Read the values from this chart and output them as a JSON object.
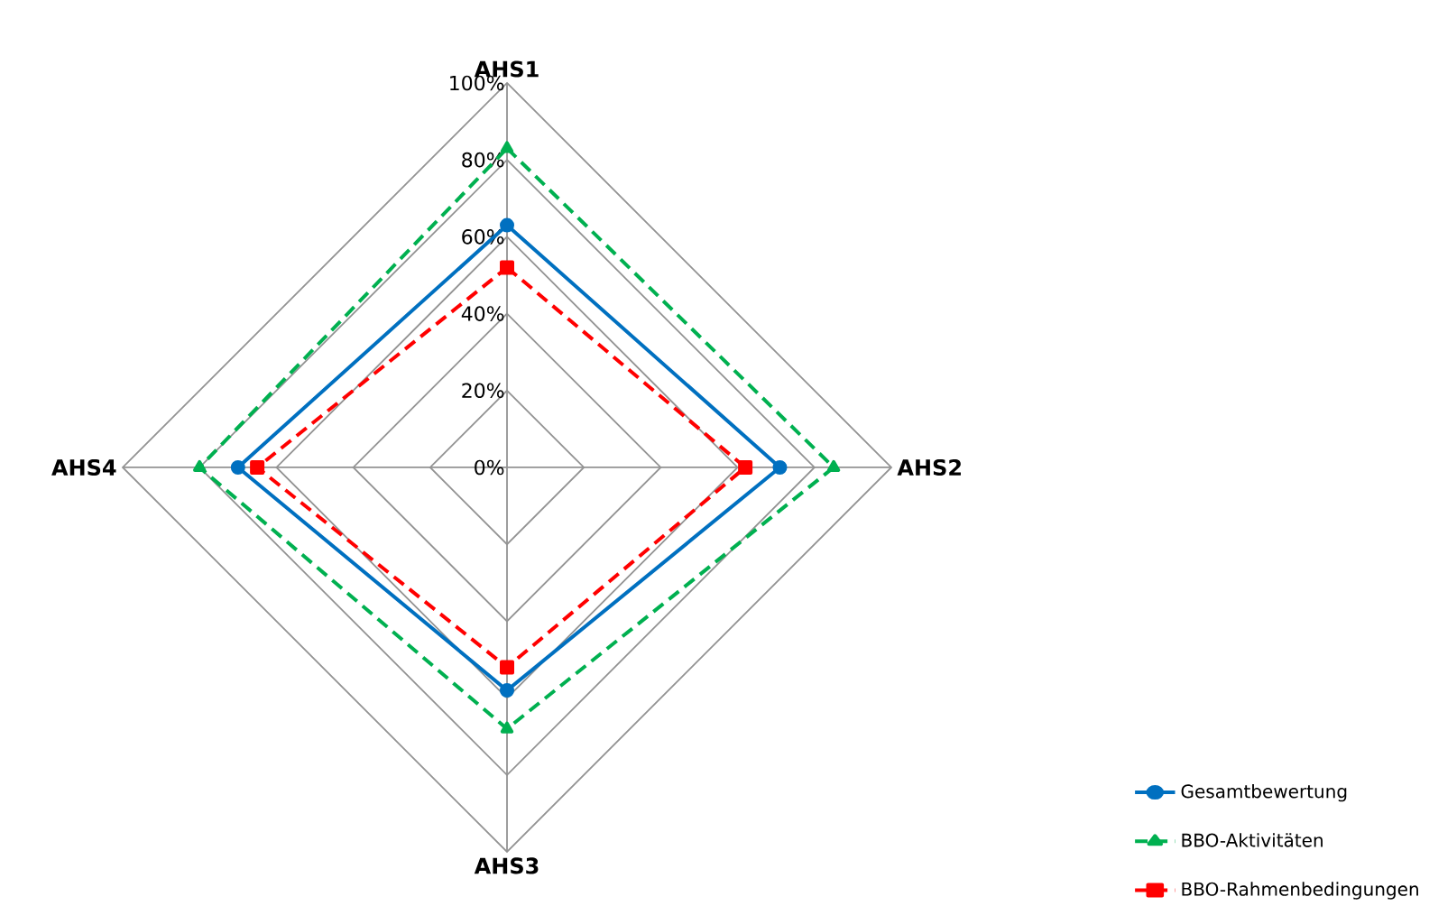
{
  "chart_data": {
    "type": "radar",
    "categories": [
      "AHS1",
      "AHS2",
      "AHS3",
      "AHS4"
    ],
    "ylim": [
      0,
      100
    ],
    "yticks": [
      {
        "value": 0,
        "label": "0%"
      },
      {
        "value": 20,
        "label": "20%"
      },
      {
        "value": 40,
        "label": "40%"
      },
      {
        "value": 60,
        "label": "60%"
      },
      {
        "value": 80,
        "label": "80%"
      },
      {
        "value": 100,
        "label": "100%"
      }
    ],
    "grid": true,
    "legend": "bottom right",
    "series": [
      {
        "name": "Gesamtbewertung",
        "color": "#0070c0",
        "values": [
          63,
          71,
          58,
          70
        ],
        "marker": "circle",
        "line_style": "solid"
      },
      {
        "name": "BBO-Aktivitäten",
        "color": "#00b050",
        "values": [
          83,
          85,
          68,
          80
        ],
        "marker": "triangle",
        "line_style": "dashed"
      },
      {
        "name": "BBO-Rahmenbedingungen",
        "color": "#ff0000",
        "values": [
          52,
          62,
          52,
          65
        ],
        "marker": "square",
        "line_style": "dashed"
      }
    ]
  }
}
